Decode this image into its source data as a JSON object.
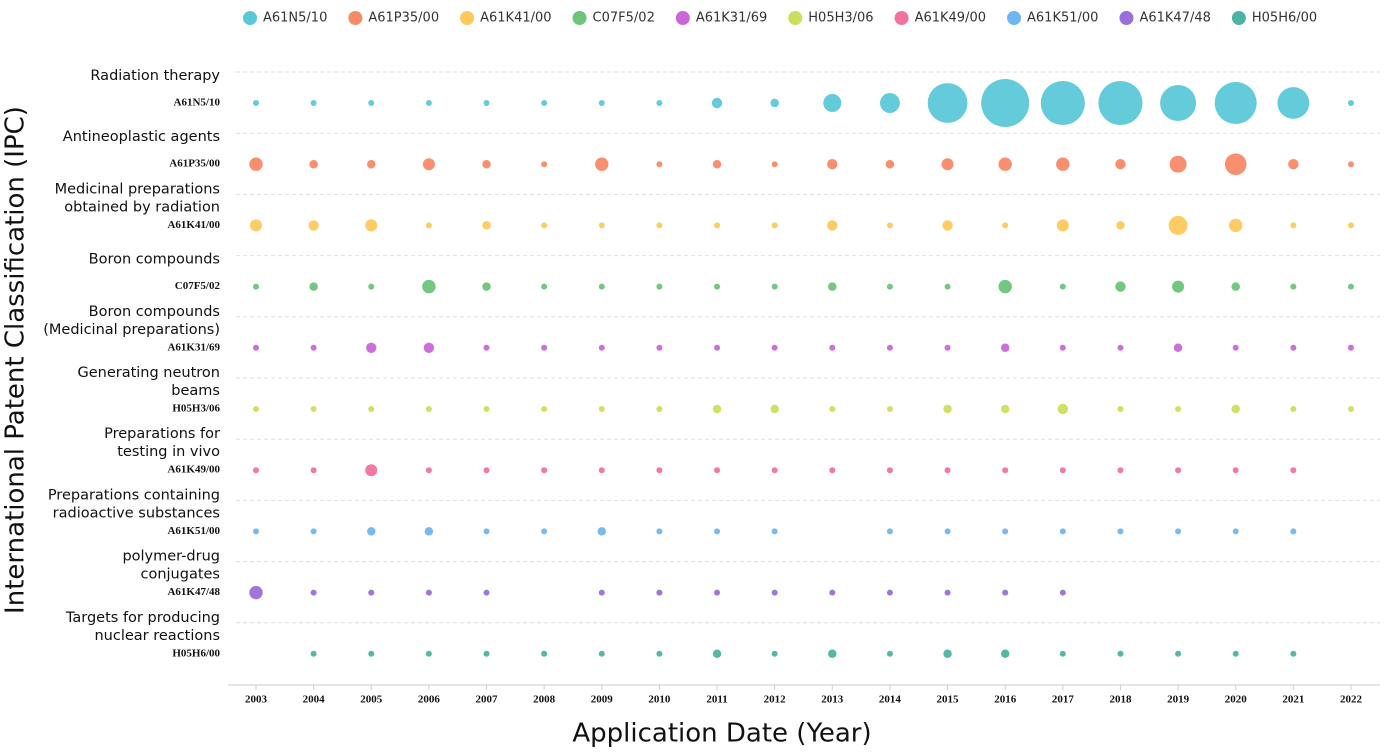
{
  "chart_data": {
    "type": "bubble",
    "x_label": "Application Date (Year)",
    "y_label": "International Patent Classification (IPC)",
    "categories": [
      "2003",
      "2004",
      "2005",
      "2006",
      "2007",
      "2008",
      "2009",
      "2010",
      "2011",
      "2012",
      "2013",
      "2014",
      "2015",
      "2016",
      "2017",
      "2018",
      "2019",
      "2020",
      "2021",
      "2022"
    ],
    "series": [
      {
        "name": "A61N5/10",
        "color": "#5bc8d8",
        "description": [
          "Radiation therapy"
        ],
        "values": [
          1,
          1,
          1,
          1,
          1,
          1,
          1,
          1,
          3,
          2,
          9,
          11,
          44,
          64,
          54,
          54,
          36,
          49,
          28,
          1
        ]
      },
      {
        "name": "A61P35/00",
        "color": "#f88a67",
        "description": [
          "Antineoplastic agents"
        ],
        "values": [
          5,
          2,
          2,
          4,
          2,
          1,
          5,
          1,
          2,
          1,
          3,
          2,
          4,
          5,
          5,
          3,
          8,
          13,
          3,
          1
        ]
      },
      {
        "name": "A61K41/00",
        "color": "#fdc95a",
        "description": [
          "Medicinal preparations",
          "obtained by radiation"
        ],
        "values": [
          4,
          3,
          4,
          1,
          2,
          1,
          1,
          1,
          1,
          1,
          3,
          1,
          3,
          1,
          4,
          2,
          10,
          5,
          1,
          1
        ]
      },
      {
        "name": "C07F5/02",
        "color": "#6dc47a",
        "description": [
          "Boron compounds"
        ],
        "values": [
          1,
          2,
          1,
          5,
          2,
          1,
          1,
          1,
          1,
          1,
          2,
          1,
          1,
          5,
          1,
          3,
          4,
          2,
          1,
          1
        ]
      },
      {
        "name": "A61K31/69",
        "color": "#c967d9",
        "description": [
          "Boron compounds",
          "(Medicinal preparations)"
        ],
        "values": [
          1,
          1,
          3,
          3,
          1,
          1,
          1,
          1,
          1,
          1,
          1,
          1,
          1,
          2,
          1,
          1,
          2,
          1,
          1,
          1
        ]
      },
      {
        "name": "H05H3/06",
        "color": "#c8e05a",
        "description": [
          "Generating neutron",
          "beams"
        ],
        "values": [
          1,
          1,
          1,
          1,
          1,
          1,
          1,
          1,
          2,
          2,
          1,
          1,
          2,
          2,
          3,
          1,
          1,
          2,
          1,
          1
        ]
      },
      {
        "name": "A61K49/00",
        "color": "#f2729b",
        "description": [
          "Preparations for",
          "testing in vivo"
        ],
        "values": [
          1,
          1,
          4,
          1,
          1,
          1,
          1,
          1,
          1,
          1,
          1,
          1,
          1,
          1,
          1,
          1,
          1,
          1,
          1,
          null
        ]
      },
      {
        "name": "A61K51/00",
        "color": "#6fb6f0",
        "description": [
          "Preparations containing",
          "radioactive substances"
        ],
        "values": [
          1,
          1,
          2,
          2,
          1,
          1,
          2,
          1,
          1,
          1,
          null,
          1,
          1,
          1,
          1,
          1,
          1,
          1,
          1,
          null
        ]
      },
      {
        "name": "A61K47/48",
        "color": "#9b6fd9",
        "description": [
          "polymer-drug",
          "conjugates"
        ],
        "values": [
          5,
          1,
          1,
          1,
          1,
          null,
          1,
          1,
          1,
          1,
          1,
          1,
          1,
          1,
          1,
          null,
          null,
          null,
          null,
          null
        ]
      },
      {
        "name": "H05H6/00",
        "color": "#4db3a4",
        "description": [
          "Targets for producing",
          "nuclear reactions"
        ],
        "values": [
          null,
          1,
          1,
          1,
          1,
          1,
          1,
          1,
          2,
          1,
          2,
          1,
          2,
          2,
          1,
          1,
          1,
          1,
          1,
          null
        ]
      }
    ]
  }
}
